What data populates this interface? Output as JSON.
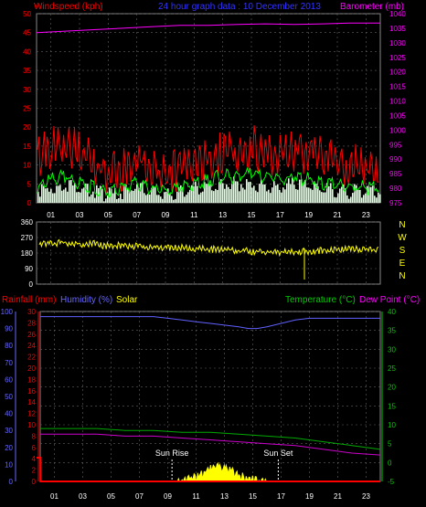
{
  "header": {
    "left_label": "Windspeed (kph)",
    "title": "24 hour graph data : 10 December 2013",
    "right_label": "Barometer (mb)"
  },
  "bottom_header": {
    "rainfall_label": "Rainfall (mm)",
    "humidity_label": "Humidity (%)",
    "solar_label": "Solar",
    "temperature_label": "Temperature (°C)",
    "dewpoint_label": "Dew Point (°C)"
  },
  "direction_letters": [
    "N",
    "W",
    "S",
    "E",
    "N"
  ],
  "annotations": {
    "sun_rise": "Sun Rise",
    "sun_set": "Sun Set"
  },
  "colors": {
    "wind_gust": "#ff0000",
    "wind_avg": "#00ff00",
    "wind_speed": "#e0ffe0",
    "barometer": "#ff00ff",
    "direction": "#ffff00",
    "humidity": "#6060ff",
    "temperature": "#00aa00",
    "dewpoint": "#cc00cc",
    "rainfall": "#ff0000",
    "solar": "#ffff00",
    "grid": "#606060",
    "axis_red": "#ff0000",
    "axis_magenta": "#ff00ff",
    "axis_yellow": "#ffff00",
    "axis_blue": "#6666ff",
    "axis_green": "#00cc00"
  },
  "chart_data": [
    {
      "type": "line",
      "name": "wind-barometer",
      "xlabel": "",
      "x_ticks": [
        "01",
        "03",
        "05",
        "07",
        "09",
        "11",
        "13",
        "15",
        "17",
        "19",
        "21",
        "23"
      ],
      "xlim": [
        0,
        24
      ],
      "left_axis": {
        "label": "Windspeed (kph)",
        "ylim": [
          0,
          50
        ],
        "ticks": [
          "0",
          "5",
          "10",
          "15",
          "20",
          "25",
          "30",
          "35",
          "40",
          "45",
          "50"
        ]
      },
      "right_axis": {
        "label": "Barometer (mb)",
        "ylim": [
          975,
          1040
        ],
        "ticks": [
          "975",
          "980",
          "985",
          "990",
          "995",
          "1000",
          "1005",
          "1010",
          "1015",
          "1020",
          "1025",
          "1030",
          "1035",
          "1040"
        ]
      },
      "series": [
        {
          "role": "barometer",
          "axis": "right",
          "x": [
            0,
            2,
            4,
            6,
            8,
            10,
            12,
            14,
            16,
            18,
            20,
            22,
            24
          ],
          "values": [
            1033.5,
            1034,
            1034.5,
            1035,
            1035.5,
            1036,
            1036,
            1036.3,
            1036.5,
            1036.3,
            1036.5,
            1036.8,
            1036.8
          ]
        },
        {
          "role": "gust",
          "axis": "left",
          "x": [
            0,
            1,
            2,
            3,
            4,
            5,
            6,
            7,
            8,
            9,
            10,
            11,
            12,
            13,
            14,
            15,
            16,
            17,
            18,
            19,
            20,
            21,
            22,
            23,
            24
          ],
          "values": [
            14,
            16,
            18,
            15,
            13,
            10,
            11,
            13,
            12,
            9,
            11,
            13,
            14,
            15,
            16,
            17,
            15,
            14,
            16,
            15,
            14,
            13,
            12,
            11,
            10
          ]
        },
        {
          "role": "average",
          "axis": "left",
          "x": [
            0,
            1,
            2,
            3,
            4,
            5,
            6,
            7,
            8,
            9,
            10,
            11,
            12,
            13,
            14,
            15,
            16,
            17,
            18,
            19,
            20,
            21,
            22,
            23,
            24
          ],
          "values": [
            5,
            7,
            8,
            6,
            5,
            4,
            5,
            6,
            5,
            4,
            5,
            6,
            7,
            8,
            8,
            9,
            8,
            7,
            8,
            7,
            6,
            6,
            5,
            5,
            5
          ]
        },
        {
          "role": "speed",
          "axis": "left",
          "x": [
            0,
            1,
            2,
            3,
            4,
            5,
            6,
            7,
            8,
            9,
            10,
            11,
            12,
            13,
            14,
            15,
            16,
            17,
            18,
            19,
            20,
            21,
            22,
            23,
            24
          ],
          "values": [
            3,
            4,
            5,
            4,
            3,
            2,
            3,
            4,
            3,
            2,
            3,
            4,
            4,
            5,
            5,
            5,
            4,
            4,
            5,
            4,
            4,
            3,
            3,
            3,
            3
          ]
        }
      ]
    },
    {
      "type": "line",
      "name": "wind-direction",
      "x_ticks": [
        "01",
        "03",
        "05",
        "07",
        "09",
        "11",
        "13",
        "15",
        "17",
        "19",
        "21",
        "23"
      ],
      "xlim": [
        0,
        24
      ],
      "ylim": [
        0,
        360
      ],
      "y_ticks": [
        "0",
        "90",
        "180",
        "270",
        "360"
      ],
      "series": [
        {
          "role": "direction",
          "x": [
            0,
            1,
            2,
            3,
            4,
            5,
            6,
            7,
            8,
            9,
            10,
            11,
            12,
            13,
            14,
            15,
            16,
            17,
            18,
            19,
            20,
            21,
            22,
            23,
            24
          ],
          "values": [
            250,
            245,
            250,
            240,
            245,
            230,
            235,
            230,
            225,
            222,
            220,
            218,
            212,
            210,
            205,
            200,
            195,
            195,
            198,
            200,
            205,
            210,
            215,
            212,
            210
          ]
        }
      ]
    },
    {
      "type": "line",
      "name": "rain-humidity-temperature",
      "x_ticks": [
        "01",
        "03",
        "05",
        "07",
        "09",
        "11",
        "13",
        "15",
        "17",
        "19",
        "21",
        "23"
      ],
      "xlim": [
        0,
        24
      ],
      "rain_axis": {
        "label": "Rainfall (mm)",
        "ylim": [
          0,
          30
        ],
        "ticks": [
          "0",
          "2",
          "4",
          "6",
          "8",
          "10",
          "12",
          "14",
          "16",
          "18",
          "20",
          "22",
          "24",
          "26",
          "28",
          "30"
        ]
      },
      "humidity_axis": {
        "label": "Humidity (%)",
        "ylim": [
          0,
          100
        ],
        "ticks": [
          "0",
          "10",
          "20",
          "30",
          "40",
          "50",
          "60",
          "70",
          "80",
          "90",
          "100"
        ]
      },
      "temp_axis": {
        "label": "Temperature (°C)",
        "ylim": [
          -5,
          40
        ],
        "ticks": [
          "-5",
          "0",
          "5",
          "10",
          "15",
          "20",
          "25",
          "30",
          "35",
          "40"
        ]
      },
      "series": [
        {
          "role": "humidity",
          "axis": "humidity",
          "x": [
            0,
            2,
            4,
            6,
            8,
            9,
            10,
            11,
            12,
            13,
            14,
            14.7,
            15.3,
            16,
            17,
            18,
            19,
            20,
            21,
            22,
            23,
            24
          ],
          "values": [
            97,
            97,
            97,
            97,
            97,
            96,
            95,
            94,
            93,
            92,
            91,
            90,
            90,
            91,
            93,
            95,
            96,
            96,
            96,
            96,
            96,
            96
          ]
        },
        {
          "role": "temperature",
          "axis": "temp",
          "x": [
            0,
            2,
            4,
            6,
            8,
            10,
            12,
            14,
            16,
            18,
            20,
            22,
            24
          ],
          "values": [
            9,
            9,
            9,
            8.5,
            8.5,
            8,
            8,
            7.5,
            7,
            6.5,
            5.5,
            4.5,
            3.5
          ]
        },
        {
          "role": "dewpoint",
          "axis": "temp",
          "x": [
            0,
            2,
            4,
            6,
            8,
            10,
            12,
            14,
            16,
            18,
            20,
            22,
            24
          ],
          "values": [
            7.5,
            7.5,
            7.5,
            7,
            7,
            6.5,
            6,
            5.5,
            5,
            4.5,
            3.5,
            2.5,
            2
          ]
        },
        {
          "role": "rainfall",
          "axis": "rain",
          "x": [
            -0.8,
            0,
            0.01,
            24
          ],
          "values": [
            4.2,
            4.2,
            0,
            0
          ]
        },
        {
          "role": "solar",
          "axis": "temp",
          "x": [
            9.5,
            10,
            10.5,
            11,
            11.5,
            12,
            12.5,
            13,
            13.5,
            14,
            14.5,
            15,
            15.5,
            16
          ],
          "values": [
            -5,
            -4.5,
            -3.5,
            -3,
            -2,
            -1,
            -0.5,
            -1,
            -1.5,
            -3,
            -3.5,
            -4,
            -4.5,
            -5
          ]
        }
      ],
      "sun_rise_x": 9.3,
      "sun_set_x": 16.8
    }
  ]
}
